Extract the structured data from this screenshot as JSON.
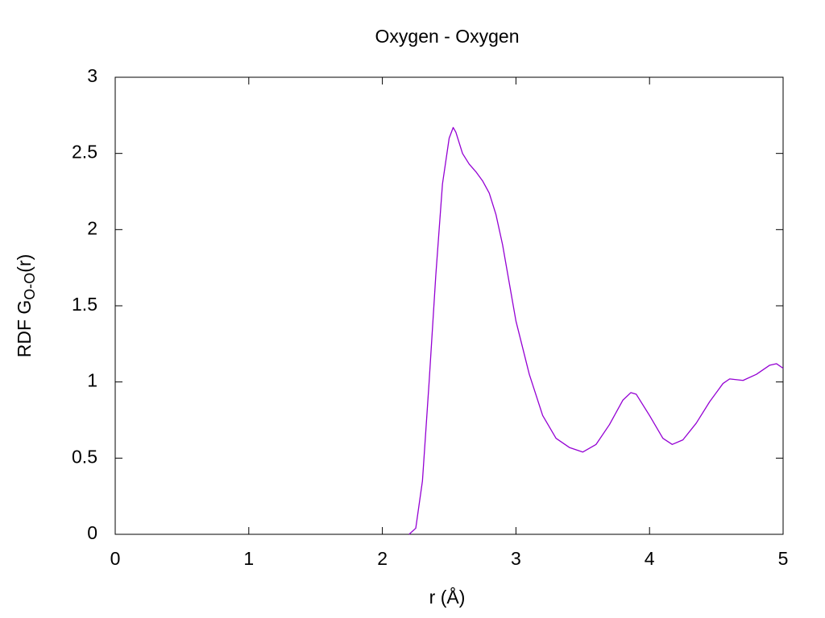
{
  "chart_data": {
    "type": "line",
    "title": "Oxygen - Oxygen",
    "xlabel": "r (Å)",
    "ylabel": [
      "RDF G",
      "O-O",
      "(r)"
    ],
    "x": [
      2.2,
      2.25,
      2.3,
      2.35,
      2.4,
      2.45,
      2.5,
      2.53,
      2.55,
      2.6,
      2.65,
      2.7,
      2.75,
      2.8,
      2.85,
      2.9,
      2.95,
      3.0,
      3.1,
      3.2,
      3.3,
      3.4,
      3.5,
      3.6,
      3.7,
      3.8,
      3.86,
      3.9,
      4.0,
      4.1,
      4.17,
      4.25,
      4.35,
      4.45,
      4.55,
      4.6,
      4.7,
      4.8,
      4.9,
      4.95,
      5.0
    ],
    "series": [
      {
        "color": "#9400d3",
        "values": [
          0,
          0.04,
          0.35,
          1.0,
          1.7,
          2.3,
          2.6,
          2.67,
          2.64,
          2.5,
          2.43,
          2.38,
          2.32,
          2.24,
          2.1,
          1.9,
          1.65,
          1.4,
          1.05,
          0.78,
          0.63,
          0.57,
          0.54,
          0.59,
          0.72,
          0.88,
          0.93,
          0.92,
          0.78,
          0.63,
          0.59,
          0.62,
          0.73,
          0.87,
          0.99,
          1.02,
          1.01,
          1.05,
          1.11,
          1.12,
          1.09
        ]
      }
    ],
    "xlim": [
      0,
      5
    ],
    "xticks": [
      0,
      1,
      2,
      3,
      4,
      5
    ],
    "ylim": [
      0,
      3
    ],
    "yticks": [
      0,
      0.5,
      1,
      1.5,
      2,
      2.5,
      3
    ],
    "grid": false
  }
}
